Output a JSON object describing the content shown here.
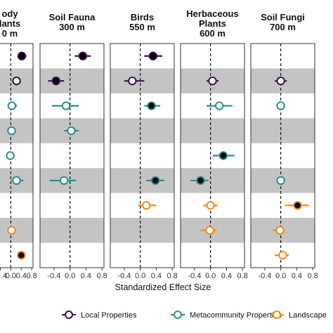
{
  "chart_data": {
    "type": "scatter",
    "x_label": "Standardized Effect Size",
    "xlim": [
      -0.75,
      0.85
    ],
    "x_ticks": [
      "-0.4",
      "0.0",
      "0.4",
      "0.8"
    ],
    "x_tick_values": [
      -0.4,
      0.0,
      0.4,
      0.8
    ],
    "panels": [
      {
        "id": "woody",
        "title_lines": [
          "ody",
          "lants",
          "0 m"
        ],
        "xlim": [
          -0.95,
          0.85
        ]
      },
      {
        "id": "soil-fauna",
        "title_lines": [
          "Soil Fauna",
          "300 m"
        ]
      },
      {
        "id": "birds",
        "title_lines": [
          "Birds",
          "550 m"
        ]
      },
      {
        "id": "herbaceous",
        "title_lines": [
          "Herbaceous",
          "Plants",
          "600 m"
        ]
      },
      {
        "id": "soil-fungi",
        "title_lines": [
          "Soil Fungi",
          "700 m"
        ]
      }
    ],
    "rows": 9,
    "colors": {
      "local": "#3f0f4f",
      "meta": "#2a8f8a",
      "landscape": "#f08a1c",
      "significant_fill": "#000000",
      "band": "#c4c4c4"
    },
    "legend": [
      {
        "key": "local",
        "label": "Local Properties"
      },
      {
        "key": "meta",
        "label": "Metacommunity Properties"
      },
      {
        "key": "landscape",
        "label": "Landscape"
      }
    ],
    "points": [
      {
        "panel": 0,
        "row": 0,
        "x": 0.42,
        "lo": 0.28,
        "hi": 0.6,
        "group": "local",
        "significant": true
      },
      {
        "panel": 0,
        "row": 1,
        "x": 0.22,
        "lo": 0.05,
        "hi": 0.38,
        "group": "local",
        "significant": false
      },
      {
        "panel": 0,
        "row": 2,
        "x": 0.04,
        "lo": -0.1,
        "hi": 0.24,
        "group": "meta",
        "significant": false
      },
      {
        "panel": 0,
        "row": 3,
        "x": 0.03,
        "lo": -0.1,
        "hi": 0.18,
        "group": "meta",
        "significant": false
      },
      {
        "panel": 0,
        "row": 4,
        "x": -0.02,
        "lo": -0.15,
        "hi": 0.1,
        "group": "meta",
        "significant": false
      },
      {
        "panel": 0,
        "row": 5,
        "x": 0.22,
        "lo": 0.02,
        "hi": 0.48,
        "group": "meta",
        "significant": false
      },
      {
        "panel": 0,
        "row": 7,
        "x": 0.03,
        "lo": -0.1,
        "hi": 0.15,
        "group": "landscape",
        "significant": false
      },
      {
        "panel": 0,
        "row": 8,
        "x": 0.4,
        "lo": 0.25,
        "hi": 0.55,
        "group": "landscape",
        "significant": true
      },
      {
        "panel": 1,
        "row": 0,
        "x": 0.32,
        "lo": 0.12,
        "hi": 0.52,
        "group": "local",
        "significant": true
      },
      {
        "panel": 1,
        "row": 1,
        "x": -0.35,
        "lo": -0.55,
        "hi": -0.15,
        "group": "local",
        "significant": true
      },
      {
        "panel": 1,
        "row": 2,
        "x": -0.1,
        "lo": -0.45,
        "hi": 0.22,
        "group": "meta",
        "significant": false
      },
      {
        "panel": 1,
        "row": 3,
        "x": 0.03,
        "lo": -0.15,
        "hi": 0.22,
        "group": "meta",
        "significant": false
      },
      {
        "panel": 1,
        "row": 5,
        "x": -0.15,
        "lo": -0.5,
        "hi": 0.15,
        "group": "meta",
        "significant": false
      },
      {
        "panel": 2,
        "row": 0,
        "x": 0.32,
        "lo": 0.1,
        "hi": 0.55,
        "group": "local",
        "significant": true
      },
      {
        "panel": 2,
        "row": 1,
        "x": -0.2,
        "lo": -0.4,
        "hi": 0.1,
        "group": "local",
        "significant": false
      },
      {
        "panel": 2,
        "row": 2,
        "x": 0.28,
        "lo": 0.1,
        "hi": 0.5,
        "group": "meta",
        "significant": true
      },
      {
        "panel": 2,
        "row": 5,
        "x": 0.38,
        "lo": 0.15,
        "hi": 0.6,
        "group": "meta",
        "significant": true
      },
      {
        "panel": 2,
        "row": 6,
        "x": 0.15,
        "lo": -0.05,
        "hi": 0.4,
        "group": "landscape",
        "significant": false
      },
      {
        "panel": 3,
        "row": 1,
        "x": 0.05,
        "lo": -0.1,
        "hi": 0.2,
        "group": "local",
        "significant": false
      },
      {
        "panel": 3,
        "row": 2,
        "x": 0.22,
        "lo": -0.1,
        "hi": 0.55,
        "group": "meta",
        "significant": false
      },
      {
        "panel": 3,
        "row": 4,
        "x": 0.32,
        "lo": 0.05,
        "hi": 0.6,
        "group": "meta",
        "significant": true
      },
      {
        "panel": 3,
        "row": 5,
        "x": -0.25,
        "lo": -0.5,
        "hi": -0.05,
        "group": "meta",
        "significant": true
      },
      {
        "panel": 3,
        "row": 6,
        "x": 0.0,
        "lo": -0.18,
        "hi": 0.18,
        "group": "landscape",
        "significant": false
      },
      {
        "panel": 3,
        "row": 7,
        "x": -0.02,
        "lo": -0.25,
        "hi": 0.15,
        "group": "landscape",
        "significant": false
      },
      {
        "panel": 4,
        "row": 1,
        "x": 0.0,
        "lo": -0.15,
        "hi": 0.15,
        "group": "local",
        "significant": false
      },
      {
        "panel": 4,
        "row": 2,
        "x": 0.0,
        "lo": -0.08,
        "hi": 0.08,
        "group": "meta",
        "significant": false
      },
      {
        "panel": 4,
        "row": 5,
        "x": 0.0,
        "lo": -0.06,
        "hi": 0.06,
        "group": "meta",
        "significant": false
      },
      {
        "panel": 4,
        "row": 6,
        "x": 0.42,
        "lo": 0.1,
        "hi": 0.7,
        "group": "landscape",
        "significant": true
      },
      {
        "panel": 4,
        "row": 7,
        "x": -0.02,
        "lo": -0.2,
        "hi": 0.1,
        "group": "landscape",
        "significant": false
      },
      {
        "panel": 4,
        "row": 8,
        "x": 0.05,
        "lo": -0.15,
        "hi": 0.2,
        "group": "landscape",
        "significant": false
      }
    ]
  }
}
